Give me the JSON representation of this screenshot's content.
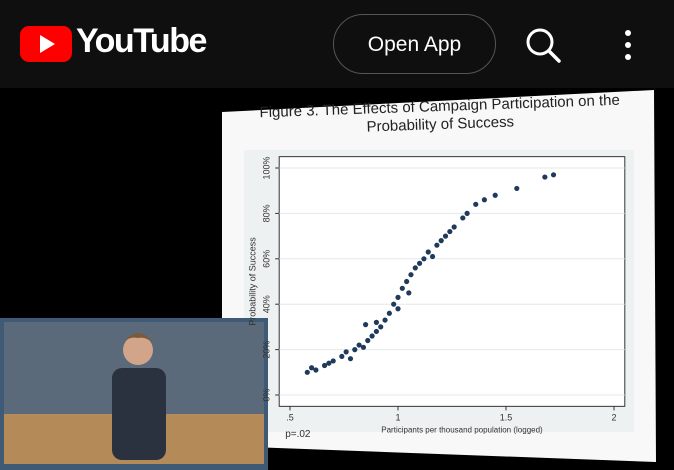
{
  "header": {
    "logo": "YouTube",
    "open_app": "Open App"
  },
  "chart_data": {
    "type": "scatter",
    "title": "Figure 3. The Effects of Campaign Participation on the Probability of Success",
    "x_label": "Participants per thousand population (logged)",
    "y_label": "Probability of Success",
    "annotation": "p=.02",
    "color": "#1f3a5a",
    "x": [
      0.58,
      0.6,
      0.62,
      0.66,
      0.68,
      0.7,
      0.74,
      0.76,
      0.78,
      0.8,
      0.82,
      0.84,
      0.85,
      0.86,
      0.88,
      0.9,
      0.9,
      0.92,
      0.94,
      0.96,
      0.98,
      1.0,
      1.0,
      1.02,
      1.04,
      1.05,
      1.06,
      1.08,
      1.1,
      1.12,
      1.14,
      1.16,
      1.18,
      1.2,
      1.22,
      1.24,
      1.26,
      1.3,
      1.32,
      1.36,
      1.4,
      1.45,
      1.55,
      1.68,
      1.72
    ],
    "y": [
      10,
      12,
      11,
      13,
      14,
      15,
      17,
      19,
      16,
      20,
      22,
      21,
      31,
      24,
      26,
      28,
      32,
      30,
      33,
      36,
      40,
      43,
      38,
      47,
      50,
      45,
      53,
      56,
      58,
      60,
      63,
      61,
      66,
      68,
      70,
      72,
      74,
      78,
      80,
      84,
      86,
      88,
      91,
      96,
      97
    ],
    "xlim": [
      0.45,
      2.05
    ],
    "ylim": [
      -5,
      105
    ],
    "xticks": [
      {
        "value": 0.5,
        "label": ".5"
      },
      1,
      1.5,
      2
    ],
    "yticks": [
      {
        "value": 0,
        "label": "0%"
      },
      {
        "value": 20,
        "label": "20%"
      },
      {
        "value": 40,
        "label": "40%"
      },
      {
        "value": 60,
        "label": "60%"
      },
      {
        "value": 80,
        "label": "80%"
      },
      {
        "value": 100,
        "label": "100%"
      }
    ],
    "grid": true
  }
}
